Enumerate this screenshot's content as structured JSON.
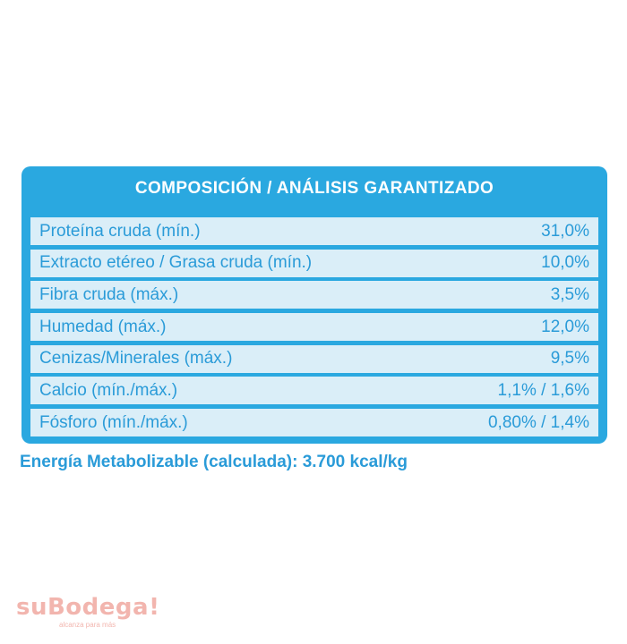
{
  "panel": {
    "title": "COMPOSICIÓN / ANÁLISIS GARANTIZADO",
    "rows": [
      {
        "label": "Proteína cruda (mín.)",
        "value": "31,0%"
      },
      {
        "label": "Extracto etéreo / Grasa cruda (mín.)",
        "value": "10,0%"
      },
      {
        "label": "Fibra cruda (máx.)",
        "value": "3,5%"
      },
      {
        "label": "Humedad (máx.)",
        "value": "12,0%"
      },
      {
        "label": "Cenizas/Minerales (máx.)",
        "value": "9,5%"
      },
      {
        "label": "Calcio (mín./máx.)",
        "value": "1,1% / 1,6%"
      },
      {
        "label": "Fósforo (mín./máx.)",
        "value": "0,80% / 1,4%"
      }
    ]
  },
  "energy": "Energía Metabolizable (calculada): 3.700 kcal/kg",
  "watermark": {
    "brand": "suBodega!",
    "tagline": "alcanza para más"
  },
  "colors": {
    "panel": "#2aa8e0",
    "row": "#daeef8",
    "text": "#2a9bd8",
    "watermark": "#e8796c"
  }
}
